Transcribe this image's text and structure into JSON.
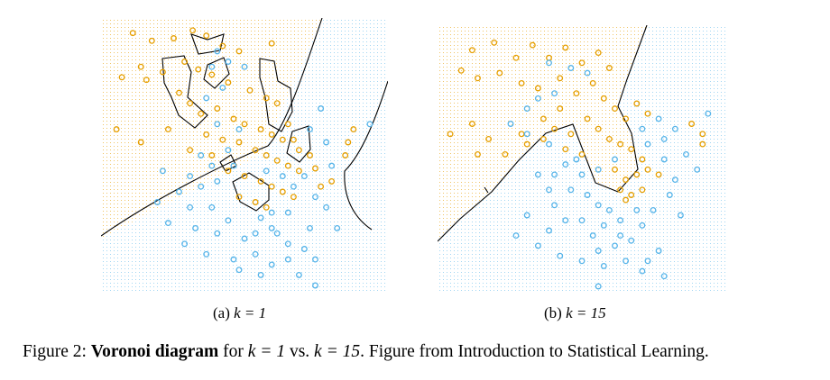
{
  "colors": {
    "orange": "#e69f00",
    "blue": "#56b4e9",
    "boundary": "#000000"
  },
  "subcaptions": {
    "a": {
      "prefix": "(a)",
      "expr": "k = 1"
    },
    "b": {
      "prefix": "(b)",
      "expr": "k = 15"
    }
  },
  "caption": {
    "label": "Figure 2:",
    "bold": "Voronoi diagram",
    "text1": "for",
    "expr1": "k = 1",
    "text2": "vs.",
    "expr2": "k = 15",
    "text3": ". Figure from Introduction to Statistical Learning."
  },
  "chart_data": [
    {
      "type": "scatter",
      "panel": "a",
      "classes": [
        "orange",
        "blue"
      ],
      "points": {
        "orange": [
          [
            0.09,
            0.97
          ],
          [
            0.16,
            0.94
          ],
          [
            0.24,
            0.95
          ],
          [
            0.31,
            0.98
          ],
          [
            0.36,
            0.96
          ],
          [
            0.42,
            0.92
          ],
          [
            0.48,
            0.9
          ],
          [
            0.6,
            0.93
          ],
          [
            0.12,
            0.84
          ],
          [
            0.05,
            0.8
          ],
          [
            0.14,
            0.79
          ],
          [
            0.2,
            0.82
          ],
          [
            0.28,
            0.86
          ],
          [
            0.33,
            0.83
          ],
          [
            0.38,
            0.81
          ],
          [
            0.44,
            0.78
          ],
          [
            0.52,
            0.75
          ],
          [
            0.58,
            0.72
          ],
          [
            0.62,
            0.7
          ],
          [
            0.26,
            0.74
          ],
          [
            0.3,
            0.7
          ],
          [
            0.34,
            0.66
          ],
          [
            0.4,
            0.68
          ],
          [
            0.46,
            0.64
          ],
          [
            0.5,
            0.62
          ],
          [
            0.56,
            0.6
          ],
          [
            0.6,
            0.58
          ],
          [
            0.66,
            0.62
          ],
          [
            0.68,
            0.56
          ],
          [
            0.36,
            0.58
          ],
          [
            0.42,
            0.56
          ],
          [
            0.48,
            0.55
          ],
          [
            0.54,
            0.52
          ],
          [
            0.58,
            0.5
          ],
          [
            0.62,
            0.48
          ],
          [
            0.66,
            0.46
          ],
          [
            0.7,
            0.44
          ],
          [
            0.74,
            0.5
          ],
          [
            0.76,
            0.45
          ],
          [
            0.44,
            0.44
          ],
          [
            0.5,
            0.42
          ],
          [
            0.56,
            0.4
          ],
          [
            0.6,
            0.38
          ],
          [
            0.64,
            0.36
          ],
          [
            0.68,
            0.34
          ],
          [
            0.54,
            0.32
          ],
          [
            0.58,
            0.3
          ],
          [
            0.48,
            0.34
          ],
          [
            0.88,
            0.55
          ],
          [
            0.9,
            0.6
          ],
          [
            0.87,
            0.5
          ],
          [
            0.82,
            0.4
          ],
          [
            0.03,
            0.6
          ],
          [
            0.12,
            0.55
          ],
          [
            0.22,
            0.6
          ],
          [
            0.3,
            0.52
          ],
          [
            0.38,
            0.5
          ],
          [
            0.78,
            0.38
          ],
          [
            0.7,
            0.52
          ],
          [
            0.64,
            0.56
          ]
        ],
        "blue": [
          [
            0.96,
            0.62
          ],
          [
            0.78,
            0.68
          ],
          [
            0.74,
            0.6
          ],
          [
            0.8,
            0.55
          ],
          [
            0.72,
            0.42
          ],
          [
            0.68,
            0.38
          ],
          [
            0.82,
            0.46
          ],
          [
            0.76,
            0.34
          ],
          [
            0.66,
            0.28
          ],
          [
            0.6,
            0.22
          ],
          [
            0.56,
            0.26
          ],
          [
            0.5,
            0.18
          ],
          [
            0.44,
            0.25
          ],
          [
            0.38,
            0.3
          ],
          [
            0.32,
            0.22
          ],
          [
            0.28,
            0.16
          ],
          [
            0.36,
            0.12
          ],
          [
            0.46,
            0.1
          ],
          [
            0.54,
            0.12
          ],
          [
            0.6,
            0.08
          ],
          [
            0.66,
            0.16
          ],
          [
            0.72,
            0.14
          ],
          [
            0.76,
            0.1
          ],
          [
            0.7,
            0.04
          ],
          [
            0.76,
            0.0
          ],
          [
            0.56,
            0.04
          ],
          [
            0.48,
            0.06
          ],
          [
            0.4,
            0.2
          ],
          [
            0.3,
            0.3
          ],
          [
            0.22,
            0.24
          ],
          [
            0.18,
            0.32
          ],
          [
            0.26,
            0.36
          ],
          [
            0.34,
            0.38
          ],
          [
            0.4,
            0.4
          ],
          [
            0.46,
            0.46
          ],
          [
            0.38,
            0.46
          ],
          [
            0.34,
            0.5
          ],
          [
            0.44,
            0.52
          ],
          [
            0.48,
            0.6
          ],
          [
            0.4,
            0.62
          ],
          [
            0.36,
            0.72
          ],
          [
            0.42,
            0.76
          ],
          [
            0.44,
            0.86
          ],
          [
            0.4,
            0.9
          ],
          [
            0.5,
            0.84
          ],
          [
            0.38,
            0.84
          ],
          [
            0.58,
            0.44
          ],
          [
            0.64,
            0.42
          ],
          [
            0.2,
            0.44
          ],
          [
            0.3,
            0.42
          ],
          [
            0.54,
            0.2
          ],
          [
            0.6,
            0.28
          ],
          [
            0.84,
            0.22
          ],
          [
            0.74,
            0.22
          ],
          [
            0.8,
            0.3
          ],
          [
            0.66,
            0.1
          ],
          [
            0.62,
            0.2
          ]
        ]
      }
    },
    {
      "type": "scatter",
      "panel": "b",
      "classes": [
        "orange",
        "blue"
      ],
      "points": {
        "orange": [
          [
            0.1,
            0.93
          ],
          [
            0.18,
            0.96
          ],
          [
            0.26,
            0.9
          ],
          [
            0.32,
            0.95
          ],
          [
            0.38,
            0.9
          ],
          [
            0.44,
            0.94
          ],
          [
            0.5,
            0.88
          ],
          [
            0.56,
            0.92
          ],
          [
            0.6,
            0.86
          ],
          [
            0.06,
            0.85
          ],
          [
            0.12,
            0.82
          ],
          [
            0.2,
            0.84
          ],
          [
            0.28,
            0.8
          ],
          [
            0.34,
            0.78
          ],
          [
            0.42,
            0.82
          ],
          [
            0.48,
            0.76
          ],
          [
            0.54,
            0.8
          ],
          [
            0.58,
            0.74
          ],
          [
            0.62,
            0.7
          ],
          [
            0.66,
            0.66
          ],
          [
            0.7,
            0.72
          ],
          [
            0.74,
            0.68
          ],
          [
            0.36,
            0.66
          ],
          [
            0.4,
            0.62
          ],
          [
            0.46,
            0.6
          ],
          [
            0.52,
            0.66
          ],
          [
            0.56,
            0.62
          ],
          [
            0.6,
            0.58
          ],
          [
            0.64,
            0.56
          ],
          [
            0.68,
            0.54
          ],
          [
            0.72,
            0.5
          ],
          [
            0.62,
            0.46
          ],
          [
            0.66,
            0.42
          ],
          [
            0.7,
            0.44
          ],
          [
            0.74,
            0.46
          ],
          [
            0.64,
            0.38
          ],
          [
            0.68,
            0.36
          ],
          [
            0.72,
            0.38
          ],
          [
            0.66,
            0.34
          ],
          [
            0.02,
            0.6
          ],
          [
            0.1,
            0.64
          ],
          [
            0.16,
            0.58
          ],
          [
            0.22,
            0.52
          ],
          [
            0.12,
            0.52
          ],
          [
            0.28,
            0.6
          ],
          [
            0.3,
            0.56
          ],
          [
            0.36,
            0.58
          ],
          [
            0.42,
            0.7
          ],
          [
            0.94,
            0.6
          ],
          [
            0.9,
            0.64
          ],
          [
            0.94,
            0.56
          ],
          [
            0.78,
            0.44
          ],
          [
            0.44,
            0.54
          ],
          [
            0.5,
            0.52
          ]
        ],
        "blue": [
          [
            0.38,
            0.88
          ],
          [
            0.46,
            0.86
          ],
          [
            0.52,
            0.84
          ],
          [
            0.4,
            0.76
          ],
          [
            0.34,
            0.74
          ],
          [
            0.3,
            0.7
          ],
          [
            0.24,
            0.64
          ],
          [
            0.3,
            0.6
          ],
          [
            0.38,
            0.56
          ],
          [
            0.44,
            0.48
          ],
          [
            0.5,
            0.44
          ],
          [
            0.4,
            0.44
          ],
          [
            0.34,
            0.44
          ],
          [
            0.38,
            0.38
          ],
          [
            0.46,
            0.38
          ],
          [
            0.52,
            0.36
          ],
          [
            0.56,
            0.32
          ],
          [
            0.6,
            0.3
          ],
          [
            0.58,
            0.24
          ],
          [
            0.54,
            0.2
          ],
          [
            0.62,
            0.16
          ],
          [
            0.68,
            0.18
          ],
          [
            0.72,
            0.24
          ],
          [
            0.66,
            0.1
          ],
          [
            0.72,
            0.06
          ],
          [
            0.78,
            0.14
          ],
          [
            0.8,
            0.04
          ],
          [
            0.76,
            0.3
          ],
          [
            0.82,
            0.36
          ],
          [
            0.8,
            0.5
          ],
          [
            0.74,
            0.56
          ],
          [
            0.84,
            0.62
          ],
          [
            0.8,
            0.58
          ],
          [
            0.88,
            0.52
          ],
          [
            0.92,
            0.46
          ],
          [
            0.84,
            0.42
          ],
          [
            0.64,
            0.26
          ],
          [
            0.5,
            0.26
          ],
          [
            0.44,
            0.26
          ],
          [
            0.38,
            0.22
          ],
          [
            0.3,
            0.28
          ],
          [
            0.26,
            0.2
          ],
          [
            0.34,
            0.16
          ],
          [
            0.42,
            0.12
          ],
          [
            0.5,
            0.1
          ],
          [
            0.58,
            0.08
          ],
          [
            0.56,
            0.14
          ],
          [
            0.62,
            0.5
          ],
          [
            0.56,
            0.46
          ],
          [
            0.48,
            0.5
          ],
          [
            0.4,
            0.32
          ],
          [
            0.7,
            0.3
          ],
          [
            0.86,
            0.28
          ],
          [
            0.96,
            0.68
          ],
          [
            0.72,
            0.62
          ],
          [
            0.78,
            0.66
          ],
          [
            0.56,
            0.0
          ],
          [
            0.74,
            0.1
          ],
          [
            0.64,
            0.2
          ]
        ]
      }
    }
  ]
}
